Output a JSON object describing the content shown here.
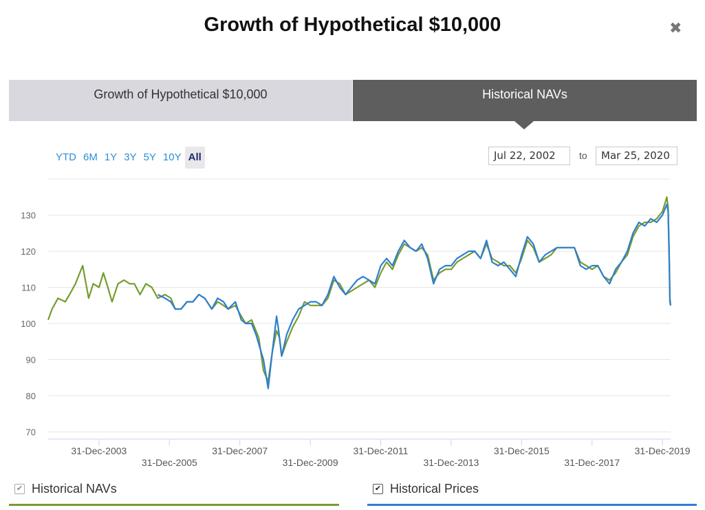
{
  "title": "Growth of Hypothetical $10,000",
  "close_icon": "close-icon",
  "tabs": [
    {
      "label": "Growth of Hypothetical $10,000",
      "active": false
    },
    {
      "label": "Historical NAVs",
      "active": true
    }
  ],
  "ranges": [
    "YTD",
    "6M",
    "1Y",
    "3Y",
    "5Y",
    "10Y",
    "All"
  ],
  "active_range": "All",
  "date_from": "Jul 22, 2002",
  "date_to": "Mar 25, 2020",
  "to_label": "to",
  "legend": [
    {
      "label": "Historical NAVs",
      "checked": true,
      "color": "#779b2e"
    },
    {
      "label": "Historical Prices",
      "checked": true,
      "color": "#2e7fcf"
    }
  ],
  "chart_data": {
    "type": "line",
    "ylim": [
      68,
      140
    ],
    "yticks": [
      70,
      80,
      90,
      100,
      110,
      120,
      130
    ],
    "xlim": [
      "2002-07-22",
      "2020-03-25"
    ],
    "xticks": [
      {
        "date": "2003-12-31",
        "label": "31-Dec-2003"
      },
      {
        "date": "2005-12-31",
        "label": "31-Dec-2005"
      },
      {
        "date": "2007-12-31",
        "label": "31-Dec-2007"
      },
      {
        "date": "2009-12-31",
        "label": "31-Dec-2009"
      },
      {
        "date": "2011-12-31",
        "label": "31-Dec-2011"
      },
      {
        "date": "2013-12-31",
        "label": "31-Dec-2013"
      },
      {
        "date": "2015-12-31",
        "label": "31-Dec-2015"
      },
      {
        "date": "2017-12-31",
        "label": "31-Dec-2017"
      },
      {
        "date": "2019-12-31",
        "label": "31-Dec-2019"
      }
    ],
    "grid": true,
    "series": [
      {
        "name": "Historical NAVs",
        "color": "#779b2e",
        "points": [
          [
            "2002-07-22",
            101
          ],
          [
            "2002-09-01",
            104
          ],
          [
            "2002-11-01",
            107
          ],
          [
            "2003-01-15",
            106
          ],
          [
            "2003-03-01",
            108
          ],
          [
            "2003-05-01",
            111
          ],
          [
            "2003-07-15",
            116
          ],
          [
            "2003-09-15",
            107
          ],
          [
            "2003-11-01",
            111
          ],
          [
            "2004-01-01",
            110
          ],
          [
            "2004-02-15",
            114
          ],
          [
            "2004-04-01",
            110
          ],
          [
            "2004-05-15",
            106
          ],
          [
            "2004-07-15",
            111
          ],
          [
            "2004-09-15",
            112
          ],
          [
            "2004-11-15",
            111
          ],
          [
            "2005-01-01",
            111
          ],
          [
            "2005-03-01",
            108
          ],
          [
            "2005-05-01",
            111
          ],
          [
            "2005-07-01",
            110
          ],
          [
            "2005-09-01",
            107
          ],
          [
            "2005-11-15",
            108
          ],
          [
            "2006-01-15",
            107
          ],
          [
            "2006-03-01",
            104
          ],
          [
            "2006-05-01",
            104
          ],
          [
            "2006-07-01",
            106
          ],
          [
            "2006-09-01",
            106
          ],
          [
            "2006-11-01",
            108
          ],
          [
            "2007-01-01",
            107
          ],
          [
            "2007-03-15",
            104
          ],
          [
            "2007-05-15",
            106
          ],
          [
            "2007-07-15",
            105
          ],
          [
            "2007-09-01",
            104
          ],
          [
            "2007-11-15",
            105
          ],
          [
            "2008-01-15",
            102
          ],
          [
            "2008-03-01",
            100
          ],
          [
            "2008-05-01",
            101
          ],
          [
            "2008-07-15",
            96
          ],
          [
            "2008-09-01",
            87
          ],
          [
            "2008-10-20",
            84
          ],
          [
            "2008-12-01",
            92
          ],
          [
            "2009-01-15",
            98
          ],
          [
            "2009-02-15",
            96
          ],
          [
            "2009-03-09",
            91
          ],
          [
            "2009-05-01",
            95
          ],
          [
            "2009-07-01",
            99
          ],
          [
            "2009-09-01",
            102
          ],
          [
            "2009-11-01",
            106
          ],
          [
            "2010-01-01",
            105
          ],
          [
            "2010-03-01",
            105
          ],
          [
            "2010-05-01",
            105
          ],
          [
            "2010-07-01",
            107
          ],
          [
            "2010-09-01",
            112
          ],
          [
            "2010-11-01",
            111
          ],
          [
            "2011-01-01",
            108
          ],
          [
            "2011-03-01",
            109
          ],
          [
            "2011-05-01",
            110
          ],
          [
            "2011-07-01",
            111
          ],
          [
            "2011-09-01",
            112
          ],
          [
            "2011-11-01",
            110
          ],
          [
            "2012-01-01",
            114
          ],
          [
            "2012-03-01",
            117
          ],
          [
            "2012-05-01",
            115
          ],
          [
            "2012-07-01",
            119
          ],
          [
            "2012-09-01",
            122
          ],
          [
            "2012-11-01",
            121
          ],
          [
            "2013-01-01",
            120
          ],
          [
            "2013-03-01",
            121
          ],
          [
            "2013-05-01",
            119
          ],
          [
            "2013-07-01",
            112
          ],
          [
            "2013-09-01",
            114
          ],
          [
            "2013-11-01",
            115
          ],
          [
            "2014-01-01",
            115
          ],
          [
            "2014-03-01",
            117
          ],
          [
            "2014-05-01",
            118
          ],
          [
            "2014-07-01",
            119
          ],
          [
            "2014-09-01",
            120
          ],
          [
            "2014-11-01",
            118
          ],
          [
            "2015-01-01",
            122
          ],
          [
            "2015-03-01",
            118
          ],
          [
            "2015-05-01",
            117
          ],
          [
            "2015-07-01",
            116
          ],
          [
            "2015-09-01",
            116
          ],
          [
            "2015-11-01",
            114
          ],
          [
            "2016-01-01",
            118
          ],
          [
            "2016-03-01",
            123
          ],
          [
            "2016-05-01",
            121
          ],
          [
            "2016-07-01",
            117
          ],
          [
            "2016-09-01",
            118
          ],
          [
            "2016-11-01",
            119
          ],
          [
            "2017-01-01",
            121
          ],
          [
            "2017-03-01",
            121
          ],
          [
            "2017-05-01",
            121
          ],
          [
            "2017-07-01",
            121
          ],
          [
            "2017-09-01",
            117
          ],
          [
            "2017-11-01",
            116
          ],
          [
            "2018-01-01",
            115
          ],
          [
            "2018-03-01",
            116
          ],
          [
            "2018-05-01",
            113
          ],
          [
            "2018-07-01",
            112
          ],
          [
            "2018-09-01",
            114
          ],
          [
            "2018-11-01",
            117
          ],
          [
            "2019-01-01",
            119
          ],
          [
            "2019-03-01",
            124
          ],
          [
            "2019-05-01",
            127
          ],
          [
            "2019-07-01",
            128
          ],
          [
            "2019-09-01",
            128
          ],
          [
            "2019-11-01",
            129
          ],
          [
            "2020-01-01",
            131
          ],
          [
            "2020-02-15",
            135
          ],
          [
            "2020-02-28",
            132
          ],
          [
            "2020-03-10",
            120
          ],
          [
            "2020-03-18",
            107
          ],
          [
            "2020-03-25",
            105
          ]
        ]
      },
      {
        "name": "Historical Prices",
        "color": "#2e7fcf",
        "points": [
          [
            "2005-09-01",
            108
          ],
          [
            "2005-11-15",
            107
          ],
          [
            "2006-01-15",
            106
          ],
          [
            "2006-03-01",
            104
          ],
          [
            "2006-05-01",
            104
          ],
          [
            "2006-07-01",
            106
          ],
          [
            "2006-09-01",
            106
          ],
          [
            "2006-11-01",
            108
          ],
          [
            "2007-01-01",
            107
          ],
          [
            "2007-03-15",
            104
          ],
          [
            "2007-05-15",
            107
          ],
          [
            "2007-07-15",
            106
          ],
          [
            "2007-09-01",
            104
          ],
          [
            "2007-11-15",
            106
          ],
          [
            "2008-01-15",
            101
          ],
          [
            "2008-03-01",
            100
          ],
          [
            "2008-05-01",
            100
          ],
          [
            "2008-06-15",
            97
          ],
          [
            "2008-09-01",
            90
          ],
          [
            "2008-10-20",
            82
          ],
          [
            "2008-12-01",
            92
          ],
          [
            "2009-01-15",
            102
          ],
          [
            "2009-02-01",
            99
          ],
          [
            "2009-03-09",
            91
          ],
          [
            "2009-05-01",
            97
          ],
          [
            "2009-07-01",
            101
          ],
          [
            "2009-09-01",
            104
          ],
          [
            "2009-11-01",
            105
          ],
          [
            "2010-01-01",
            106
          ],
          [
            "2010-03-01",
            106
          ],
          [
            "2010-05-01",
            105
          ],
          [
            "2010-07-01",
            108
          ],
          [
            "2010-09-01",
            113
          ],
          [
            "2010-11-01",
            110
          ],
          [
            "2011-01-01",
            108
          ],
          [
            "2011-03-01",
            110
          ],
          [
            "2011-05-01",
            112
          ],
          [
            "2011-07-01",
            113
          ],
          [
            "2011-09-01",
            112
          ],
          [
            "2011-11-01",
            111
          ],
          [
            "2012-01-01",
            116
          ],
          [
            "2012-03-01",
            118
          ],
          [
            "2012-05-01",
            116
          ],
          [
            "2012-07-01",
            120
          ],
          [
            "2012-09-01",
            123
          ],
          [
            "2012-11-01",
            121
          ],
          [
            "2013-01-01",
            120
          ],
          [
            "2013-03-01",
            122
          ],
          [
            "2013-05-01",
            118
          ],
          [
            "2013-07-01",
            111
          ],
          [
            "2013-09-01",
            115
          ],
          [
            "2013-11-01",
            116
          ],
          [
            "2014-01-01",
            116
          ],
          [
            "2014-03-01",
            118
          ],
          [
            "2014-05-01",
            119
          ],
          [
            "2014-07-01",
            120
          ],
          [
            "2014-09-01",
            120
          ],
          [
            "2014-11-01",
            118
          ],
          [
            "2015-01-01",
            123
          ],
          [
            "2015-03-01",
            117
          ],
          [
            "2015-05-01",
            116
          ],
          [
            "2015-07-01",
            117
          ],
          [
            "2015-09-01",
            115
          ],
          [
            "2015-11-01",
            113
          ],
          [
            "2016-01-01",
            119
          ],
          [
            "2016-03-01",
            124
          ],
          [
            "2016-05-01",
            122
          ],
          [
            "2016-07-01",
            117
          ],
          [
            "2016-09-01",
            119
          ],
          [
            "2016-11-01",
            120
          ],
          [
            "2017-01-01",
            121
          ],
          [
            "2017-03-01",
            121
          ],
          [
            "2017-05-01",
            121
          ],
          [
            "2017-07-01",
            121
          ],
          [
            "2017-09-01",
            116
          ],
          [
            "2017-11-01",
            115
          ],
          [
            "2018-01-01",
            116
          ],
          [
            "2018-03-01",
            116
          ],
          [
            "2018-05-01",
            113
          ],
          [
            "2018-07-01",
            111
          ],
          [
            "2018-09-01",
            115
          ],
          [
            "2018-11-01",
            117
          ],
          [
            "2019-01-01",
            120
          ],
          [
            "2019-03-01",
            125
          ],
          [
            "2019-05-01",
            128
          ],
          [
            "2019-07-01",
            127
          ],
          [
            "2019-09-01",
            129
          ],
          [
            "2019-11-01",
            128
          ],
          [
            "2020-01-01",
            130
          ],
          [
            "2020-02-15",
            133
          ],
          [
            "2020-02-28",
            131
          ],
          [
            "2020-03-10",
            118
          ],
          [
            "2020-03-18",
            106
          ],
          [
            "2020-03-25",
            105
          ]
        ]
      }
    ]
  }
}
